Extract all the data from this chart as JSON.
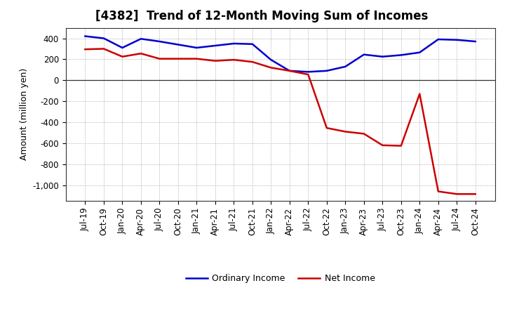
{
  "title": "[4382]  Trend of 12-Month Moving Sum of Incomes",
  "ylabel": "Amount (million yen)",
  "ylim": [
    -1150,
    500
  ],
  "yticks": [
    -1000,
    -800,
    -600,
    -400,
    -200,
    0,
    200,
    400
  ],
  "background_color": "#ffffff",
  "ordinary_income_color": "#0000cc",
  "net_income_color": "#cc0000",
  "line_width": 1.8,
  "x_labels": [
    "Jul-19",
    "Oct-19",
    "Jan-20",
    "Apr-20",
    "Jul-20",
    "Oct-20",
    "Jan-21",
    "Apr-21",
    "Jul-21",
    "Oct-21",
    "Jan-22",
    "Apr-22",
    "Jul-22",
    "Oct-22",
    "Jan-23",
    "Apr-23",
    "Jul-23",
    "Oct-23",
    "Jan-24",
    "Apr-24",
    "Jul-24",
    "Oct-24"
  ],
  "ordinary_income": [
    420,
    400,
    310,
    395,
    370,
    340,
    310,
    330,
    350,
    345,
    195,
    90,
    80,
    90,
    130,
    245,
    225,
    240,
    265,
    390,
    385,
    370
  ],
  "net_income": [
    295,
    300,
    225,
    255,
    205,
    205,
    205,
    185,
    195,
    175,
    120,
    90,
    55,
    -455,
    -490,
    -510,
    -620,
    -625,
    -130,
    -1060,
    -1085,
    -1085
  ],
  "title_fontsize": 12,
  "ylabel_fontsize": 9,
  "tick_fontsize": 8.5
}
